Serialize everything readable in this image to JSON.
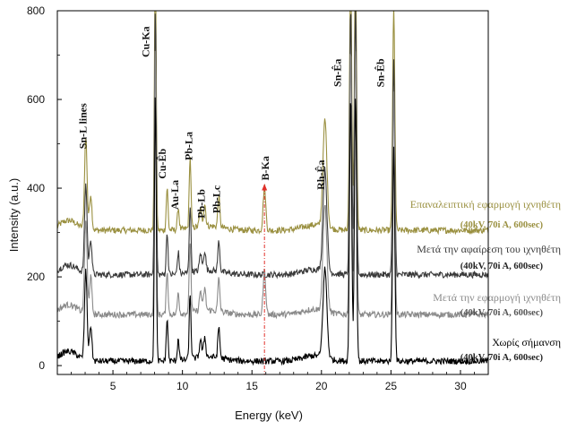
{
  "chart_data": {
    "type": "line",
    "xlabel": "Energy (keV)",
    "ylabel": "Intensity (a.u.)",
    "xlim": [
      1,
      32
    ],
    "ylim": [
      -20,
      800
    ],
    "xticks": [
      5,
      10,
      15,
      20,
      25,
      30
    ],
    "yticks": [
      0,
      200,
      400,
      600,
      800
    ],
    "grid": false,
    "series": [
      {
        "name": "Επαναλειπτική εφαρμογή ιχνηθέτη",
        "condition": "(40kV, 70i A, 600sec)",
        "color": "#9a9040",
        "baseline": 305,
        "peak_heights": [
          205,
          80,
          600,
          95,
          50,
          160,
          40,
          50,
          70,
          100,
          600,
          600,
          240,
          500
        ]
      },
      {
        "name": "Μετά την αφαίρεση του ιχνηθέτη",
        "condition": "(40kV, 70i A, 600sec)",
        "color": "#3a3a3a",
        "baseline": 205,
        "peak_heights": [
          200,
          80,
          600,
          95,
          50,
          150,
          40,
          45,
          70,
          0,
          600,
          600,
          230,
          480
        ]
      },
      {
        "name": "Μετά την εφαρμογή ιχνηθέτη",
        "condition": "(40kV, 70i A, 600sec)",
        "color": "#8a8a8a",
        "baseline": 115,
        "peak_heights": [
          210,
          85,
          600,
          100,
          50,
          160,
          45,
          50,
          75,
          100,
          600,
          600,
          240,
          500
        ]
      },
      {
        "name": "Χωρίς σήμανση",
        "condition": "(40kV, 70i A, 600sec)",
        "color": "#000000",
        "baseline": 10,
        "peak_heights": [
          200,
          80,
          600,
          95,
          50,
          145,
          40,
          45,
          70,
          0,
          600,
          600,
          200,
          480
        ]
      }
    ],
    "peaks": [
      {
        "energy": 3.05,
        "width": 0.13
      },
      {
        "energy": 3.4,
        "width": 0.12
      },
      {
        "energy": 8.05,
        "width": 0.09
      },
      {
        "energy": 8.9,
        "width": 0.09
      },
      {
        "energy": 9.7,
        "width": 0.09
      },
      {
        "energy": 10.55,
        "width": 0.09
      },
      {
        "energy": 11.3,
        "width": 0.11
      },
      {
        "energy": 11.6,
        "width": 0.11
      },
      {
        "energy": 12.62,
        "width": 0.1
      },
      {
        "energy": 15.9,
        "width": 0.13
      },
      {
        "energy": 22.1,
        "width": 0.11
      },
      {
        "energy": 22.45,
        "width": 0.11
      },
      {
        "energy": 20.25,
        "width": 0.2
      },
      {
        "energy": 25.2,
        "width": 0.11
      }
    ],
    "annotations": [
      {
        "text": "Sn-L lines",
        "x": 3.1,
        "y": 540,
        "rotate": -90
      },
      {
        "text": "Cu-Ka",
        "x": 7.6,
        "y": 730,
        "rotate": -90
      },
      {
        "text": "Cu-Êb",
        "x": 8.8,
        "y": 455,
        "rotate": -90
      },
      {
        "text": "Au-La",
        "x": 9.7,
        "y": 385,
        "rotate": -90
      },
      {
        "text": "Pb-La",
        "x": 10.7,
        "y": 495,
        "rotate": -90
      },
      {
        "text": "Pb-Lb",
        "x": 11.6,
        "y": 365,
        "rotate": -90
      },
      {
        "text": "Pb-Lc",
        "x": 12.7,
        "y": 375,
        "rotate": -90
      },
      {
        "text": "B-Ka",
        "x": 16.2,
        "y": 445,
        "rotate": -90,
        "color": "#e0302a"
      },
      {
        "text": "Rh-Êa",
        "x": 20.2,
        "y": 430,
        "rotate": -90
      },
      {
        "text": "Sn-Êa",
        "x": 21.4,
        "y": 660,
        "rotate": -90
      },
      {
        "text": "Sn-Êb",
        "x": 24.5,
        "y": 660,
        "rotate": -90
      }
    ],
    "marker_line": {
      "x": 15.9,
      "color": "#e0302a"
    }
  }
}
